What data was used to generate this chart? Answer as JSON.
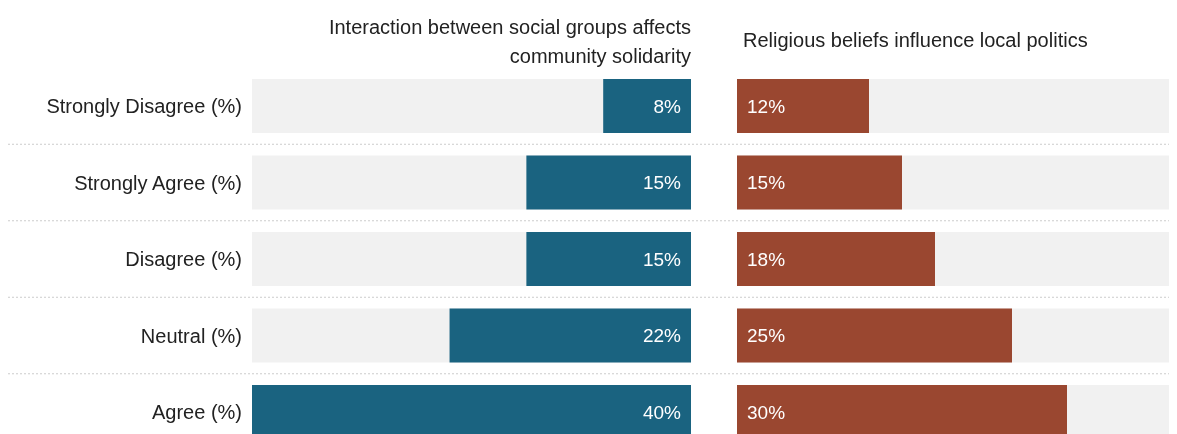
{
  "chart_data": [
    {
      "type": "bar",
      "orientation": "horizontal",
      "title": "Interaction between social groups affects community solidarity",
      "categories": [
        "Strongly Disagree (%)",
        "Strongly Agree (%)",
        "Disagree (%)",
        "Neutral (%)",
        "Agree (%)"
      ],
      "values": [
        8,
        15,
        15,
        22,
        40
      ],
      "value_labels": [
        "8%",
        "15%",
        "15%",
        "22%",
        "40%"
      ],
      "color": "#1a6380"
    },
    {
      "type": "bar",
      "orientation": "horizontal",
      "title": "Religious beliefs influence local politics",
      "categories": [
        null,
        null,
        null,
        null,
        null
      ],
      "values": [
        12,
        15,
        18,
        25,
        30
      ],
      "value_labels": [
        "12%",
        "15%",
        "18%",
        "25%",
        "30%"
      ],
      "color": "#9a4730"
    }
  ]
}
